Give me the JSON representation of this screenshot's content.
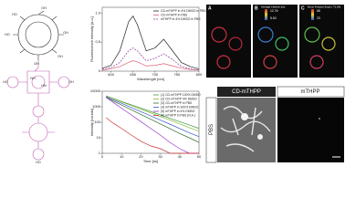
{
  "chart_data": [
    {
      "type": "line",
      "ylabel": "Fluorescence intensity [a.u.]",
      "xlabel": "Wavelength [nm]",
      "x": [
        580,
        600,
        620,
        640,
        650,
        660,
        680,
        700,
        720,
        740,
        760,
        780,
        800
      ],
      "series": [
        {
          "name": "CD-mTHPP in 4% DMSO in PBS",
          "color": "#222222",
          "dashed": false,
          "values": [
            0.05,
            0.1,
            0.35,
            0.85,
            0.95,
            0.8,
            0.35,
            0.4,
            0.55,
            0.35,
            0.15,
            0.08,
            0.04
          ]
        },
        {
          "name": "CD-mTHPP in PBS",
          "color": "#e0607a",
          "dashed": false,
          "values": [
            0.02,
            0.04,
            0.08,
            0.15,
            0.18,
            0.16,
            0.09,
            0.1,
            0.13,
            0.09,
            0.05,
            0.03,
            0.02
          ]
        },
        {
          "name": "mTHPP in 4% DMSO in PBS",
          "color": "#8a3a9a",
          "dashed": true,
          "values": [
            0.03,
            0.06,
            0.15,
            0.35,
            0.4,
            0.35,
            0.18,
            0.22,
            0.3,
            0.2,
            0.08,
            0.04,
            0.02
          ]
        }
      ],
      "xlim": [
        580,
        800
      ],
      "xticks": [
        600,
        650,
        700,
        750,
        800
      ],
      "ylim": [
        0,
        1.1
      ],
      "yticks": [
        0,
        0.5,
        {
          "value": 1,
          "label": "1.0"
        }
      ],
      "log_y": false
    },
    {
      "type": "line",
      "ylabel": "Intensity [counts]",
      "xlabel": "Time [ns]",
      "x": [
        2,
        5,
        10,
        15,
        20,
        25,
        30,
        35,
        40,
        45,
        50
      ],
      "series": [
        {
          "name": "(1) CD-mTHPP 100% DMSO",
          "color": "#3a9a3a",
          "dashed": false,
          "values": [
            5000,
            3700,
            2200,
            1350,
            820,
            500,
            300,
            180,
            110,
            67,
            40
          ]
        },
        {
          "name": "(2) CD-mTHPP 4% DMSO",
          "color": "#8ab33a",
          "dashed": false,
          "values": [
            5000,
            3600,
            2060,
            1200,
            700,
            400,
            230,
            140,
            80,
            45,
            27
          ]
        },
        {
          "name": "(3) CD-mTHPP in PBS",
          "color": "#2e6b2e",
          "dashed": false,
          "values": [
            4000,
            2600,
            1300,
            640,
            320,
            160,
            78,
            39,
            19,
            10,
            5
          ]
        },
        {
          "name": "(4) mTHPP in 100% DMSO",
          "color": "#3355cc",
          "dashed": false,
          "values": [
            4500,
            3100,
            1670,
            890,
            480,
            260,
            140,
            75,
            40,
            21,
            12
          ]
        },
        {
          "name": "(5) mTHPP in 4% DMSO",
          "color": "#9933cc",
          "dashed": false,
          "values": [
            4000,
            2200,
            800,
            300,
            110,
            40,
            15,
            5,
            2,
            1,
            1
          ]
        },
        {
          "name": "(6) mTHPP in PBS (N.A.)",
          "color": "#cc3333",
          "dashed": false,
          "values": [
            200,
            100,
            40,
            15,
            6,
            3,
            2,
            1,
            1,
            1,
            1
          ]
        }
      ],
      "xlim": [
        0,
        50
      ],
      "xticks": [
        0,
        10,
        20,
        30,
        40,
        50
      ],
      "ylim": [
        1,
        10000
      ],
      "yticks": [
        1,
        10,
        100,
        1000,
        10000
      ],
      "log_y": true
    }
  ],
  "structure": {
    "labels": [
      "OH",
      "HO",
      "OH",
      "HO",
      "OH",
      "OH",
      "NH",
      "HN",
      "HO",
      "OH",
      "HO"
    ]
  },
  "microscopy": {
    "panels": [
      {
        "letter": "A"
      },
      {
        "letter": "B",
        "scale_title": "Average Lifetime [ns]",
        "scale_max": "12.76",
        "scale_min": "5.63"
      },
      {
        "letter": "C",
        "scale_title": "Mono Fraction Expon. T1 [%]",
        "scale_max": "68",
        "scale_min": "23"
      }
    ]
  },
  "tissue": {
    "columns": [
      "CD-mTHPP",
      "mTHPP"
    ],
    "row": "PBS"
  }
}
